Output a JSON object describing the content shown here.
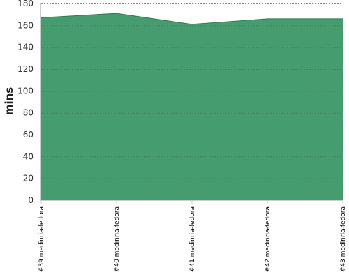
{
  "chart_data": {
    "type": "area",
    "title": "",
    "xlabel": "",
    "ylabel": "mins",
    "categories": [
      "#39 medinria-fedora",
      "#40 medinria-fedora",
      "#41 medinria-fedora",
      "#42 medinria-fedora",
      "#43 medinria-fedora"
    ],
    "series": [
      {
        "values": [
          167,
          171,
          161,
          166,
          166
        ]
      }
    ],
    "ylim": [
      0,
      180
    ],
    "yticks": [
      0,
      20,
      40,
      60,
      80,
      100,
      120,
      140,
      160,
      180
    ],
    "grid": true,
    "legend": "none",
    "colors": {
      "fill": "#459c6e",
      "stroke": "#2e7d4f",
      "grid": "#4a6b57",
      "top_grid": "#888888",
      "axis": "#cccccc"
    }
  }
}
